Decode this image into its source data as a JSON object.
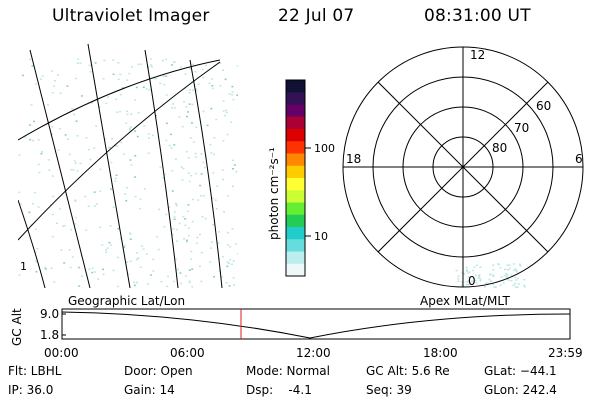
{
  "header": {
    "title": "Ultraviolet Imager",
    "date": "22 Jul 07",
    "time": "08:31:00 UT"
  },
  "colorbar": {
    "label": "photon cm⁻²s⁻¹",
    "ticks": [
      "100",
      "10"
    ],
    "colors": [
      "#111133",
      "#331155",
      "#660066",
      "#aa0033",
      "#dd0000",
      "#ff3300",
      "#ff8800",
      "#ffcc00",
      "#ffff33",
      "#ccff33",
      "#66ee33",
      "#22cc55",
      "#22cccc",
      "#66dddd",
      "#bbeeee",
      "#eef8f8"
    ]
  },
  "polar_plot": {
    "labels": {
      "top": "12",
      "left": "18",
      "right": "6",
      "bottom": "0",
      "r60": "60",
      "r70": "70",
      "r80": "80"
    }
  },
  "timeline": {
    "ylabel": "GC Alt",
    "y_ticks": [
      "9.0",
      "1.8"
    ],
    "left_caption": "Geographic Lat/Lon",
    "right_caption": "Apex MLat/MLT",
    "x_ticks": [
      "00:00",
      "06:00",
      "12:00",
      "18:00",
      "23:59"
    ],
    "current_time_marker": "08:31"
  },
  "info": {
    "flt": "Flt: LBHL",
    "ip": "IP: 36.0",
    "door": "Door: Open",
    "gain": "Gain: 14",
    "mode": "Mode: Normal",
    "dsp": "Dsp:    -4.1",
    "gc_alt": "GC Alt: 5.6 Re",
    "seq": "Seq: 39",
    "glat": "GLat: −44.1",
    "glon": "GLon: 242.4"
  },
  "geo_map": {
    "tick_label": "1"
  }
}
